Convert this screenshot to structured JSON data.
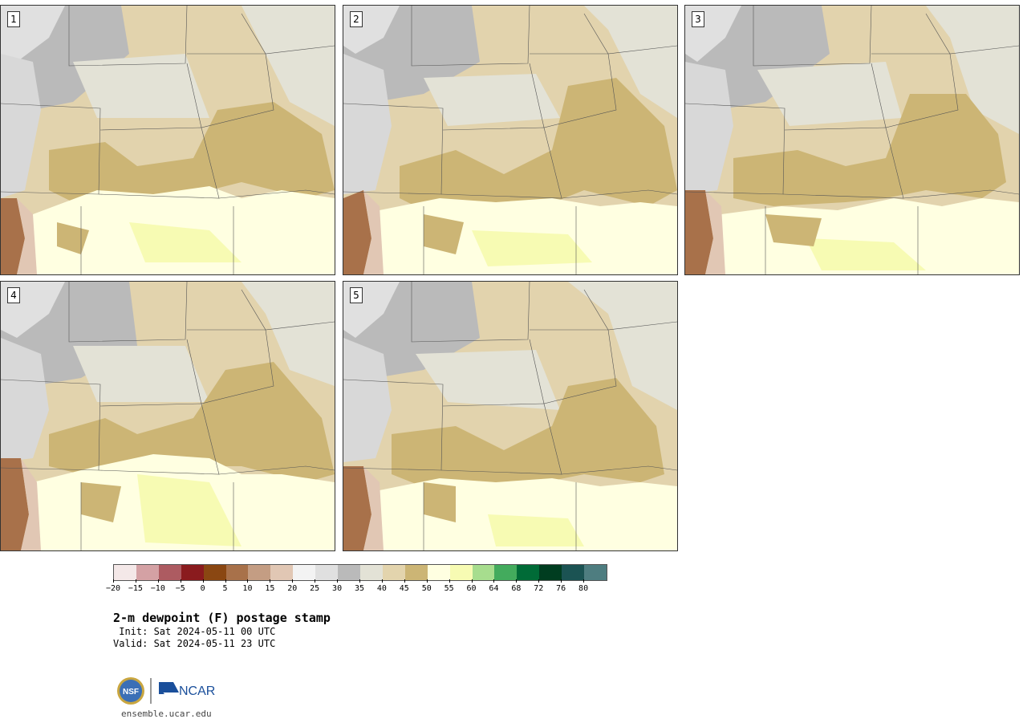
{
  "panels": [
    {
      "label": "1"
    },
    {
      "label": "2"
    },
    {
      "label": "3"
    },
    {
      "label": "4"
    },
    {
      "label": "5"
    }
  ],
  "colorbar": {
    "colors": [
      "#f4e8e8",
      "#d4a1a4",
      "#ad5b61",
      "#8a1b1e",
      "#8a4712",
      "#a8714a",
      "#c49d83",
      "#e1c7b4",
      "#f3f3f3",
      "#e0e0e0",
      "#bababa",
      "#e3e2d6",
      "#e3d4ad",
      "#ccb575",
      "#ffffe1",
      "#f7fbb3",
      "#a7dd8e",
      "#43ab5d",
      "#006b37",
      "#003d20",
      "#1b5353",
      "#4e7d80"
    ],
    "tick_labels": [
      "−20",
      "−15",
      "−10",
      "−5",
      "0",
      "5",
      "10",
      "15",
      "20",
      "25",
      "30",
      "35",
      "40",
      "45",
      "50",
      "55",
      "60",
      "64",
      "68",
      "72",
      "76",
      "80"
    ]
  },
  "title": "2-m dewpoint (F) postage stamp",
  "init_text": " Init: Sat 2024-05-11 00 UTC",
  "valid_text": "Valid: Sat 2024-05-11 23 UTC",
  "logos": {
    "nsf": "NSF",
    "ncar": "NCAR"
  },
  "url": "ensemble.ucar.edu"
}
